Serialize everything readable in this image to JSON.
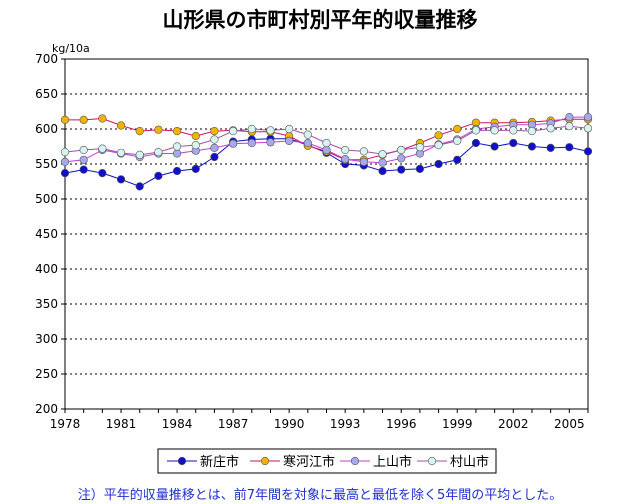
{
  "chart_data": {
    "type": "line",
    "title": "山形県の市町村別平年的収量推移",
    "ylabel": "kg/10a",
    "xlabel": "",
    "ylim": [
      200,
      700
    ],
    "yticks": [
      200,
      250,
      300,
      350,
      400,
      450,
      500,
      550,
      600,
      650,
      700
    ],
    "xlim": [
      1978,
      2006
    ],
    "xticks": [
      "1978",
      "1981",
      "1984",
      "1987",
      "1990",
      "1993",
      "1996",
      "1999",
      "2002",
      "2005"
    ],
    "grid": "horizontal-dashed",
    "legend_position": "bottom",
    "x": [
      1978,
      1979,
      1980,
      1981,
      1982,
      1983,
      1984,
      1985,
      1986,
      1987,
      1988,
      1989,
      1990,
      1991,
      1992,
      1993,
      1994,
      1995,
      1996,
      1997,
      1998,
      1999,
      2000,
      2001,
      2002,
      2003,
      2004,
      2005,
      2006
    ],
    "series": [
      {
        "name": "新庄市",
        "color": "#1010c8",
        "fill": "#1010c8",
        "values": [
          537,
          542,
          537,
          528,
          518,
          533,
          540,
          543,
          560,
          582,
          585,
          586,
          586,
          577,
          566,
          550,
          548,
          540,
          542,
          543,
          550,
          556,
          580,
          575,
          580,
          575,
          573,
          574,
          568
        ]
      },
      {
        "name": "寒河江市",
        "color": "#d01060",
        "fill": "#f0b400",
        "values": [
          613,
          613,
          615,
          605,
          597,
          599,
          597,
          590,
          597,
          598,
          596,
          596,
          590,
          576,
          568,
          556,
          556,
          563,
          570,
          580,
          591,
          600,
          609,
          609,
          609,
          610,
          612,
          614,
          614
        ]
      },
      {
        "name": "上山市",
        "color": "#c040d0",
        "fill": "#a8a8f0",
        "values": [
          553,
          556,
          570,
          565,
          560,
          565,
          565,
          569,
          573,
          579,
          580,
          581,
          583,
          580,
          570,
          557,
          553,
          552,
          558,
          565,
          578,
          585,
          600,
          603,
          606,
          606,
          608,
          617,
          617
        ]
      },
      {
        "name": "村山市",
        "color": "#a050b0",
        "fill": "#d8f4f0",
        "values": [
          567,
          570,
          572,
          566,
          563,
          567,
          575,
          577,
          585,
          597,
          600,
          598,
          600,
          592,
          580,
          570,
          568,
          564,
          570,
          574,
          577,
          583,
          598,
          598,
          598,
          597,
          601,
          604,
          601
        ]
      }
    ]
  },
  "footnote": "注）平年的収量推移とは、前7年間を対象に最高と最低を除く5年間の平均とした。"
}
